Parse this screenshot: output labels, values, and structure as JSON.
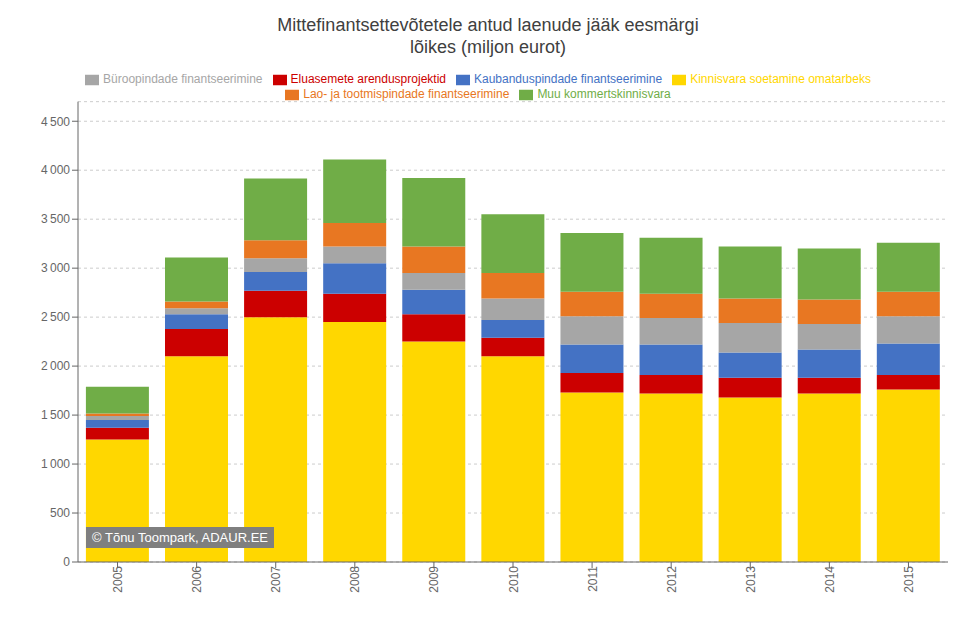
{
  "chart_data": {
    "type": "bar",
    "stacked": true,
    "title": "Mittefinantsettevõtetele antud laenude jääk eesmärgi\nlõikes (miljon eurot)",
    "categories": [
      2005,
      2006,
      2007,
      2008,
      2009,
      2010,
      2011,
      2012,
      2013,
      2014,
      2015
    ],
    "series": [
      {
        "name": "Kinnisvara soetamine omatarbeks",
        "color": "#FFD700",
        "values": [
          1250,
          2100,
          2500,
          2450,
          2250,
          2100,
          1730,
          1720,
          1680,
          1720,
          1760
        ]
      },
      {
        "name": "Eluasemete arendusprojektid",
        "color": "#CC0000",
        "values": [
          120,
          280,
          270,
          290,
          280,
          190,
          200,
          190,
          200,
          160,
          150
        ]
      },
      {
        "name": "Kaubanduspindade finantseerimine",
        "color": "#4472C4",
        "values": [
          80,
          150,
          190,
          310,
          250,
          180,
          290,
          310,
          260,
          290,
          320
        ]
      },
      {
        "name": "Büroopindade finantseerimine",
        "color": "#A6A6A6",
        "values": [
          40,
          60,
          140,
          170,
          170,
          220,
          290,
          270,
          300,
          260,
          280
        ]
      },
      {
        "name": "Lao- ja tootmispindade  finantseerimine",
        "color": "#E87722",
        "values": [
          25,
          70,
          185,
          240,
          270,
          260,
          250,
          250,
          250,
          250,
          250
        ]
      },
      {
        "name": "Muu kommertskinnisvara",
        "color": "#70AD47",
        "values": [
          275,
          450,
          630,
          650,
          700,
          600,
          600,
          570,
          530,
          520,
          500
        ]
      }
    ],
    "ylim": [
      0,
      4700
    ],
    "yticks": [
      0,
      500,
      {
        "value": 1000,
        "label": "1 000"
      },
      {
        "value": 1500,
        "label": "1 500"
      },
      {
        "value": 2000,
        "label": "2 000"
      },
      {
        "value": 2500,
        "label": "2 500"
      },
      {
        "value": 3000,
        "label": "3 000"
      },
      {
        "value": 3500,
        "label": "3 500"
      },
      {
        "value": 4000,
        "label": "4 000"
      },
      {
        "value": 4500,
        "label": "4 500"
      }
    ],
    "grid": true,
    "legend": "top",
    "annotation": "© Tõnu Toompark, ADAUR.EE"
  }
}
